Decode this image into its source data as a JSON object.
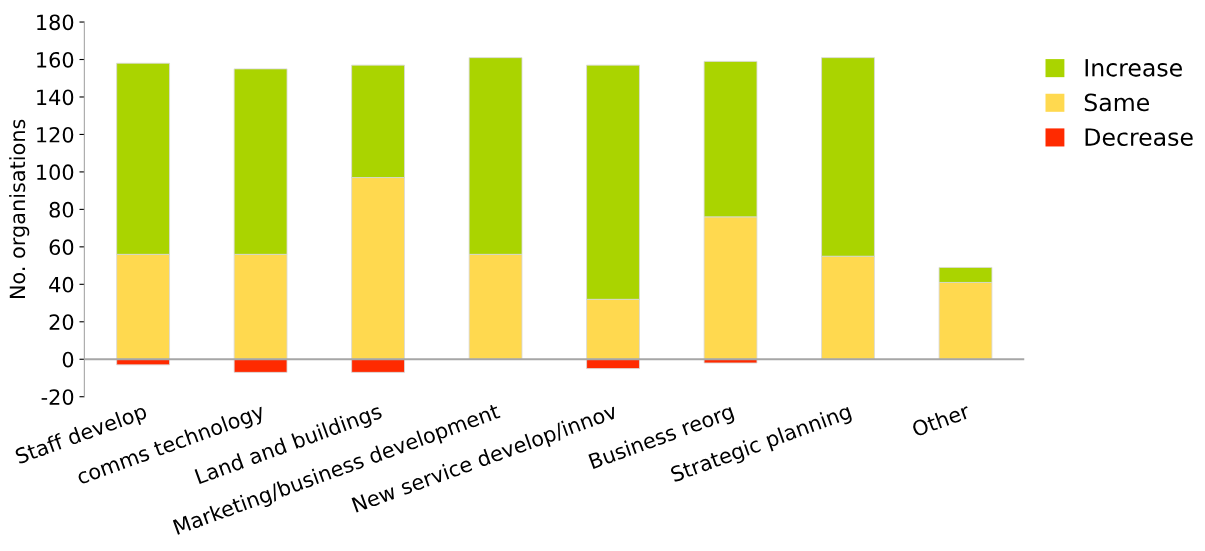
{
  "chart_data": {
    "type": "bar",
    "stacked": true,
    "ylabel": "No. organisations",
    "categories": [
      "Staff develop",
      "comms technology",
      "Land and buildings",
      "Marketing/business development",
      "New service develop/innov",
      "Business reorg",
      "Strategic planning",
      "Other"
    ],
    "series": [
      {
        "name": "Decrease",
        "color": "#ff2a00",
        "values": [
          -3,
          -7,
          -7,
          0,
          -5,
          -2,
          0,
          0
        ]
      },
      {
        "name": "Same",
        "color": "#ffd94f",
        "values": [
          56,
          56,
          97,
          56,
          32,
          76,
          55,
          41
        ]
      },
      {
        "name": "Increase",
        "color": "#aad400",
        "values": [
          102,
          99,
          60,
          105,
          125,
          83,
          106,
          8
        ]
      }
    ],
    "ylim": [
      -20,
      180
    ],
    "yticks": [
      -20,
      0,
      20,
      40,
      60,
      80,
      100,
      120,
      140,
      160,
      180
    ],
    "grid": false,
    "legend": "right"
  }
}
